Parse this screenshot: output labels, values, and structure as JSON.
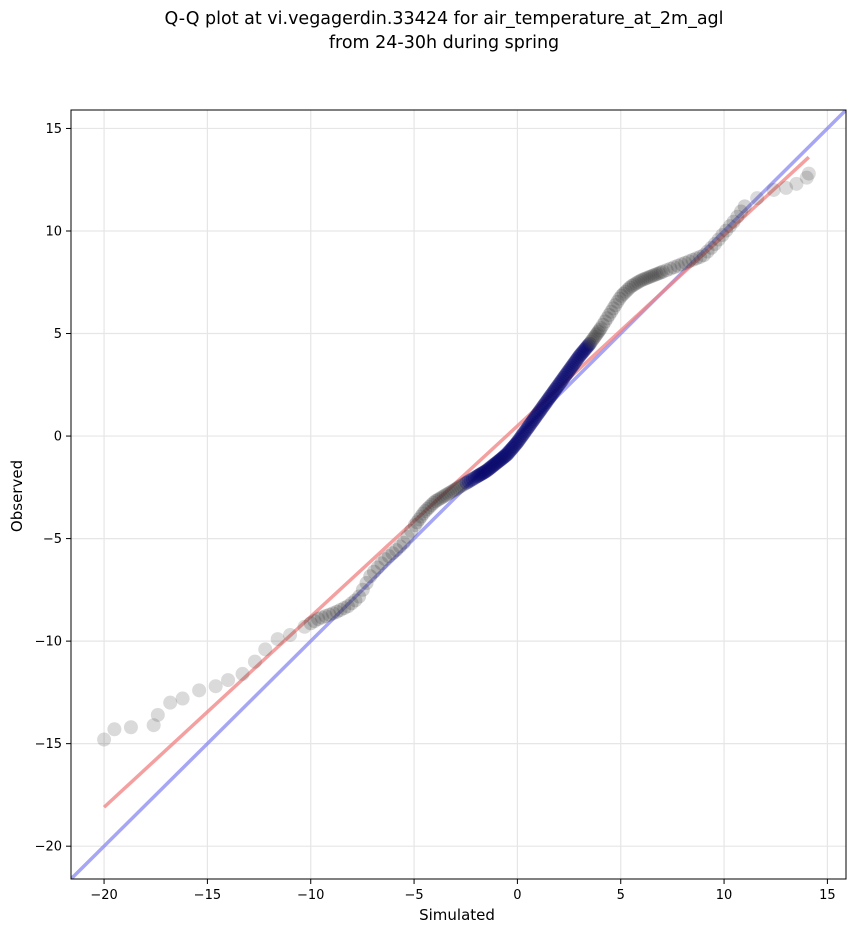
{
  "chart_data": {
    "type": "scatter",
    "title": [
      "Q-Q plot at vi.vegagerdin.33424 for air_temperature_at_2m_agl",
      "from 24-30h during spring"
    ],
    "xlabel": "Simulated",
    "ylabel": "Observed",
    "xlim": [
      -21.6,
      15.9
    ],
    "ylim": [
      -21.6,
      15.9
    ],
    "xticks": [
      -20,
      -15,
      -10,
      -5,
      0,
      5,
      10,
      15
    ],
    "yticks": [
      -20,
      -15,
      -10,
      -5,
      0,
      5,
      10,
      15
    ],
    "xtick_labels": [
      "−20",
      "−15",
      "−10",
      "−5",
      "0",
      "5",
      "10",
      "15"
    ],
    "ytick_labels": [
      "−20",
      "−15",
      "−10",
      "−5",
      "0",
      "5",
      "10",
      "15"
    ],
    "grid": true,
    "reference_line": {
      "name": "1:1",
      "x": [
        -21.6,
        15.9
      ],
      "y": [
        -21.6,
        15.9
      ],
      "color": "#8080f0"
    },
    "fit_line": {
      "x": [
        -20,
        14.1
      ],
      "y": [
        -18.1,
        13.6
      ],
      "color": "#f08080"
    },
    "point_color": "#333333",
    "core_color": "#0a0a6e",
    "quantile_curve": {
      "x": [
        -20,
        -19.5,
        -18.7,
        -17.6,
        -17.4,
        -16.8,
        -16.2,
        -15.4,
        -14.6,
        -14,
        -13.3,
        -12.7,
        -12.2,
        -11.6,
        -11,
        -10.3,
        -9.6,
        -8.8,
        -8.2,
        -7.7,
        -7.1,
        -6.4,
        -5.9,
        -5.5,
        -5,
        -4.5,
        -4,
        -3.5,
        -3,
        -2.5,
        -2,
        -1.5,
        -1,
        -0.5,
        0,
        0.5,
        1,
        1.5,
        2,
        2.5,
        3,
        3.5,
        4,
        4.5,
        5,
        5.5,
        6,
        6.5,
        7,
        7.5,
        8,
        8.5,
        9,
        9.5,
        10,
        10.5,
        11,
        11.6,
        12.4,
        13,
        13.5,
        14,
        14.1
      ],
      "y": [
        -14.8,
        -14.3,
        -14.2,
        -14.1,
        -13.6,
        -13,
        -12.8,
        -12.4,
        -12.2,
        -11.9,
        -11.6,
        -11,
        -10.4,
        -9.9,
        -9.7,
        -9.3,
        -8.9,
        -8.6,
        -8.3,
        -7.9,
        -6.8,
        -6,
        -5.6,
        -5.2,
        -4.4,
        -3.7,
        -3.2,
        -2.9,
        -2.6,
        -2.3,
        -2,
        -1.7,
        -1.3,
        -0.9,
        -0.3,
        0.4,
        1.1,
        1.8,
        2.5,
        3.2,
        3.9,
        4.5,
        5.2,
        6,
        6.8,
        7.3,
        7.6,
        7.8,
        8,
        8.2,
        8.4,
        8.6,
        8.8,
        9.3,
        9.9,
        10.5,
        11.2,
        11.6,
        12,
        12.1,
        12.3,
        12.6,
        12.8
      ]
    }
  }
}
